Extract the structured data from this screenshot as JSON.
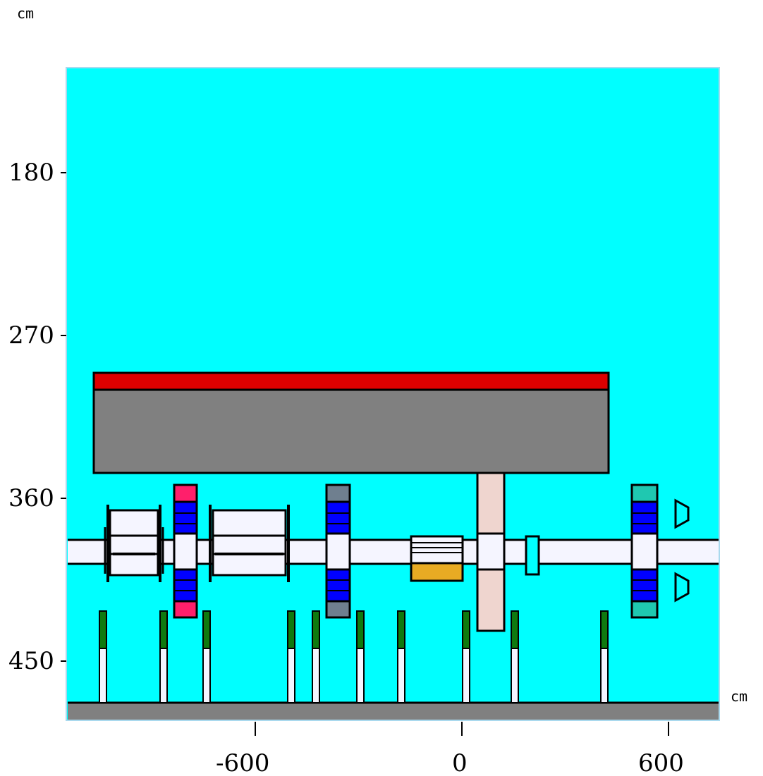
{
  "units": {
    "x": "cm",
    "y": "cm"
  },
  "axes": {
    "x_ticks": [
      "-600",
      "0",
      "600"
    ],
    "y_ticks": [
      "180",
      "270",
      "360",
      "450"
    ]
  },
  "colors": {
    "background": "#00ffff",
    "pipe": "#f5f5ff",
    "floor": "#808080",
    "upper_block": "#808080",
    "upper_block_top": "#dd0000",
    "magnet_coil": "#0000ff",
    "cap_left": "#ff1f6b",
    "cap_mid": "#6f7f8f",
    "cap_right": "#1fc8b0",
    "support": "#0f7a0f",
    "column": "#efd5cf",
    "target": "#e8ab23"
  }
}
